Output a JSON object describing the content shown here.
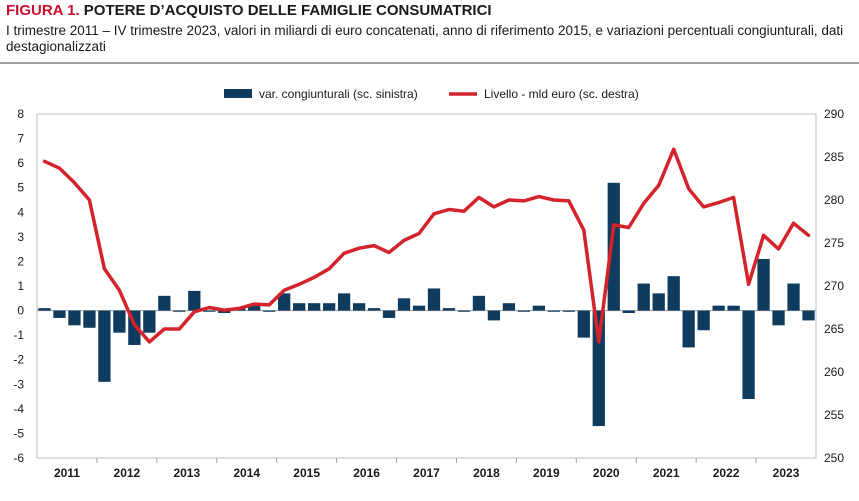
{
  "figure": {
    "label": "FIGURA 1.",
    "title": "POTERE D’ACQUISTO DELLE FAMIGLIE CONSUMATRICI",
    "subtitle": "I trimestre 2011 – IV trimestre 2023, valori in miliardi di euro concatenati, anno di riferimento 2015, e variazioni percentuali congiunturali, dati destagionalizzati"
  },
  "chart_data": {
    "type": "bar+line",
    "title": "POTERE D’ACQUISTO DELLE FAMIGLIE CONSUMATRICI",
    "legend": [
      {
        "name": "var. congiunturali (sc. sinistra)",
        "color": "#0f3b5f",
        "kind": "bar"
      },
      {
        "name": "Livello - mld euro (sc. destra)",
        "color": "#d4232b",
        "kind": "line"
      }
    ],
    "legend_position": "top-center",
    "years": [
      "2011",
      "2012",
      "2013",
      "2014",
      "2015",
      "2016",
      "2017",
      "2018",
      "2019",
      "2020",
      "2021",
      "2022",
      "2023"
    ],
    "quarters_per_year": 4,
    "left_axis": {
      "min": -6,
      "max": 8,
      "ticks": [
        "-6",
        "-5",
        "-4",
        "-3",
        "-2",
        "-1",
        "0",
        "1",
        "2",
        "3",
        "4",
        "5",
        "6",
        "7",
        "8"
      ]
    },
    "right_axis": {
      "min": 250,
      "max": 290,
      "ticks": [
        "250",
        "255",
        "260",
        "265",
        "270",
        "275",
        "280",
        "285",
        "290"
      ]
    },
    "bar_series": {
      "name": "var. congiunturali (sc. sinistra)",
      "color": "#0f3b5f",
      "values": [
        0.1,
        -0.3,
        -0.6,
        -0.7,
        -2.9,
        -0.9,
        -1.4,
        -0.9,
        0.6,
        0.0,
        0.8,
        0.0,
        -0.1,
        0.1,
        0.2,
        0.0,
        0.7,
        0.3,
        0.3,
        0.3,
        0.7,
        0.3,
        0.1,
        -0.3,
        0.5,
        0.2,
        0.9,
        0.1,
        0.0,
        0.6,
        -0.4,
        0.3,
        0.0,
        0.2,
        0.0,
        0.0,
        -1.1,
        -4.7,
        5.2,
        -0.1,
        1.1,
        0.7,
        1.4,
        -1.5,
        -0.8,
        0.2,
        0.2,
        -3.6,
        2.1,
        -0.6,
        1.1,
        -0.4
      ]
    },
    "line_series": {
      "name": "Livello - mld euro (sc. destra)",
      "color": "#d4232b",
      "values": [
        284.5,
        283.7,
        282.0,
        280.0,
        272.0,
        269.5,
        265.5,
        263.5,
        265.0,
        265.0,
        267.0,
        267.5,
        267.2,
        267.4,
        267.9,
        267.8,
        269.5,
        270.2,
        271.0,
        272.0,
        273.8,
        274.4,
        274.7,
        273.9,
        275.3,
        276.1,
        278.4,
        278.9,
        278.7,
        280.3,
        279.2,
        280.0,
        279.9,
        280.4,
        280.0,
        279.9,
        276.5,
        263.5,
        277.1,
        276.8,
        279.6,
        281.7,
        285.9,
        281.3,
        279.2,
        279.7,
        280.3,
        270.2,
        275.9,
        274.3,
        277.3,
        275.9
      ]
    }
  }
}
